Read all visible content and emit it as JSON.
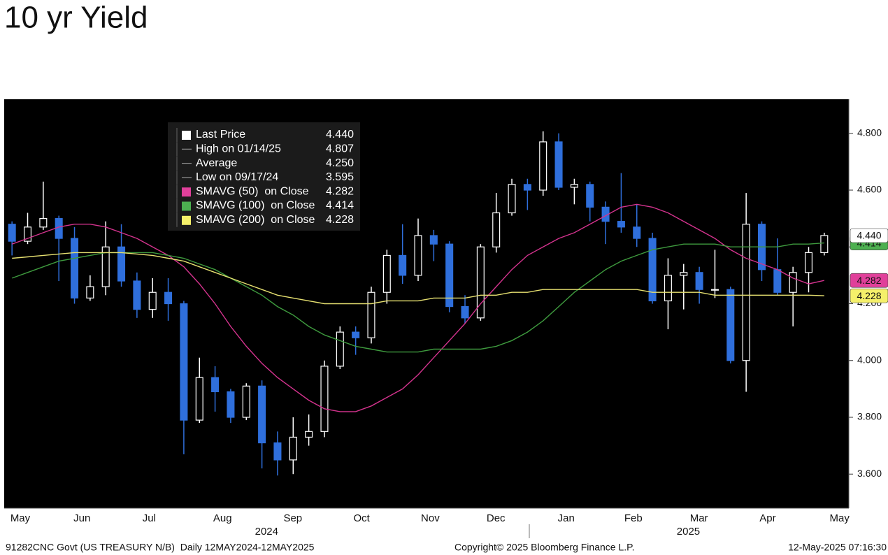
{
  "chart_data": {
    "type": "candlestick",
    "title": "10 yr Yield",
    "ylim": [
      3.48,
      4.92
    ],
    "yticks": [
      {
        "value": 3.6,
        "label": "3.600"
      },
      {
        "value": 3.8,
        "label": "3.800"
      },
      {
        "value": 4.0,
        "label": "4.000"
      },
      {
        "value": 4.2,
        "label": "4.200"
      },
      {
        "value": 4.4,
        "label": "4.400"
      },
      {
        "value": 4.6,
        "label": "4.600"
      },
      {
        "value": 4.8,
        "label": "4.800"
      }
    ],
    "categories": [
      null,
      null,
      null,
      null,
      null,
      null,
      null,
      null,
      null,
      null,
      null,
      null,
      null,
      null,
      null,
      null,
      null,
      null,
      null,
      null,
      null,
      null,
      null,
      null,
      null,
      null,
      null,
      null,
      null,
      null,
      null,
      null,
      null,
      null,
      null,
      null,
      null,
      null,
      null,
      null,
      null,
      null,
      null,
      null,
      null,
      null,
      null,
      null,
      null,
      null,
      null,
      null,
      null
    ],
    "xticks": [
      {
        "value": 0.35,
        "label": "May"
      },
      {
        "value": 4.3,
        "label": "Jun"
      },
      {
        "value": 8.6,
        "label": "Jul"
      },
      {
        "value": 13.3,
        "label": "Aug"
      },
      {
        "value": 17.8,
        "label": "Sep"
      },
      {
        "value": 22.2,
        "label": "Oct"
      },
      {
        "value": 26.6,
        "label": "Nov"
      },
      {
        "value": 30.8,
        "label": "Dec"
      },
      {
        "value": 35.3,
        "label": "Jan"
      },
      {
        "value": 39.6,
        "label": "Feb"
      },
      {
        "value": 43.8,
        "label": "Mar"
      },
      {
        "value": 48.2,
        "label": "Apr"
      },
      {
        "value": 52.8,
        "label": "May"
      }
    ],
    "years": [
      {
        "value": 16.3,
        "label": "2024"
      },
      {
        "value": 43.3,
        "label": "2025"
      }
    ],
    "up_color": "#ffffff",
    "down_color": "#2f6fdc",
    "ohlc": [
      [
        4.48,
        4.49,
        4.37,
        4.42
      ],
      [
        4.42,
        4.52,
        4.41,
        4.47
      ],
      [
        4.47,
        4.63,
        4.46,
        4.5
      ],
      [
        4.5,
        4.51,
        4.28,
        4.43
      ],
      [
        4.43,
        4.47,
        4.2,
        4.22
      ],
      [
        4.22,
        4.3,
        4.21,
        4.26
      ],
      [
        4.26,
        4.49,
        4.23,
        4.4
      ],
      [
        4.4,
        4.48,
        4.26,
        4.28
      ],
      [
        4.28,
        4.31,
        4.15,
        4.18
      ],
      [
        4.18,
        4.29,
        4.15,
        4.24
      ],
      [
        4.24,
        4.29,
        4.14,
        4.2
      ],
      [
        4.2,
        4.21,
        3.67,
        3.79
      ],
      [
        3.79,
        4.01,
        3.78,
        3.94
      ],
      [
        3.94,
        3.98,
        3.82,
        3.89
      ],
      [
        3.89,
        3.9,
        3.78,
        3.8
      ],
      [
        3.8,
        3.92,
        3.79,
        3.91
      ],
      [
        3.91,
        3.93,
        3.62,
        3.71
      ],
      [
        3.71,
        3.75,
        3.595,
        3.65
      ],
      [
        3.65,
        3.8,
        3.6,
        3.73
      ],
      [
        3.73,
        3.81,
        3.7,
        3.75
      ],
      [
        3.75,
        4.0,
        3.73,
        3.98
      ],
      [
        3.98,
        4.12,
        3.97,
        4.1
      ],
      [
        4.1,
        4.12,
        4.02,
        4.08
      ],
      [
        4.08,
        4.26,
        4.06,
        4.24
      ],
      [
        4.24,
        4.39,
        4.2,
        4.37
      ],
      [
        4.37,
        4.48,
        4.27,
        4.3
      ],
      [
        4.3,
        4.5,
        4.28,
        4.44
      ],
      [
        4.44,
        4.46,
        4.35,
        4.41
      ],
      [
        4.41,
        4.42,
        4.17,
        4.19
      ],
      [
        4.19,
        4.23,
        4.13,
        4.15
      ],
      [
        4.15,
        4.41,
        4.14,
        4.4
      ],
      [
        4.4,
        4.59,
        4.38,
        4.52
      ],
      [
        4.52,
        4.64,
        4.51,
        4.62
      ],
      [
        4.62,
        4.64,
        4.53,
        4.6
      ],
      [
        4.6,
        4.807,
        4.58,
        4.77
      ],
      [
        4.77,
        4.8,
        4.6,
        4.61
      ],
      [
        4.61,
        4.64,
        4.55,
        4.62
      ],
      [
        4.62,
        4.63,
        4.49,
        4.54
      ],
      [
        4.54,
        4.56,
        4.41,
        4.49
      ],
      [
        4.49,
        4.66,
        4.45,
        4.47
      ],
      [
        4.47,
        4.55,
        4.4,
        4.43
      ],
      [
        4.43,
        4.45,
        4.2,
        4.21
      ],
      [
        4.21,
        4.36,
        4.11,
        4.3
      ],
      [
        4.3,
        4.34,
        4.18,
        4.31
      ],
      [
        4.31,
        4.33,
        4.2,
        4.25
      ],
      [
        4.25,
        4.39,
        4.22,
        4.25
      ],
      [
        4.25,
        4.26,
        3.99,
        4.0
      ],
      [
        4.0,
        4.59,
        3.89,
        4.48
      ],
      [
        4.48,
        4.49,
        4.28,
        4.32
      ],
      [
        4.32,
        4.43,
        4.23,
        4.24
      ],
      [
        4.24,
        4.33,
        4.12,
        4.31
      ],
      [
        4.31,
        4.4,
        4.24,
        4.38
      ],
      [
        4.38,
        4.45,
        4.37,
        4.44
      ]
    ],
    "stats": [
      {
        "name": "Last Price",
        "value": 4.44,
        "value_label": "4.440",
        "color": "#ffffff"
      },
      {
        "name": "High on 01/14/25",
        "value": 4.807,
        "value_label": "4.807"
      },
      {
        "name": "Average",
        "value": 4.25,
        "value_label": "4.250"
      },
      {
        "name": "Low on 09/17/24",
        "value": 3.595,
        "value_label": "3.595"
      }
    ],
    "series": [
      {
        "name": "SMAVG (50)  on Close",
        "color": "#d4338e",
        "tag_color": "#e0409a",
        "last": 4.282,
        "last_label": "4.282",
        "values": [
          4.41,
          4.43,
          4.45,
          4.47,
          4.48,
          4.48,
          4.47,
          4.45,
          4.43,
          4.4,
          4.37,
          4.33,
          4.27,
          4.2,
          4.12,
          4.05,
          3.99,
          3.94,
          3.9,
          3.86,
          3.83,
          3.82,
          3.82,
          3.84,
          3.87,
          3.9,
          3.95,
          4.01,
          4.07,
          4.13,
          4.2,
          4.26,
          4.32,
          4.37,
          4.4,
          4.43,
          4.45,
          4.48,
          4.51,
          4.54,
          4.55,
          4.54,
          4.52,
          4.49,
          4.46,
          4.43,
          4.39,
          4.36,
          4.34,
          4.32,
          4.29,
          4.27,
          4.282
        ]
      },
      {
        "name": "SMAVG (100)  on Close",
        "color": "#3e9a3e",
        "tag_color": "#4cb050",
        "last": 4.414,
        "last_label": "4.414",
        "values": [
          4.29,
          4.31,
          4.33,
          4.35,
          4.36,
          4.37,
          4.38,
          4.38,
          4.38,
          4.38,
          4.37,
          4.36,
          4.34,
          4.32,
          4.29,
          4.26,
          4.23,
          4.19,
          4.16,
          4.12,
          4.09,
          4.07,
          4.05,
          4.04,
          4.03,
          4.03,
          4.03,
          4.04,
          4.04,
          4.04,
          4.04,
          4.05,
          4.07,
          4.1,
          4.14,
          4.19,
          4.24,
          4.28,
          4.32,
          4.35,
          4.37,
          4.39,
          4.4,
          4.41,
          4.41,
          4.41,
          4.4,
          4.4,
          4.4,
          4.4,
          4.41,
          4.41,
          4.414
        ]
      },
      {
        "name": "SMAVG (200)  on Close",
        "color": "#e6e070",
        "tag_color": "#f5f06a",
        "last": 4.228,
        "last_label": "4.228",
        "values": [
          4.36,
          4.365,
          4.37,
          4.375,
          4.38,
          4.38,
          4.38,
          4.38,
          4.375,
          4.37,
          4.36,
          4.35,
          4.33,
          4.31,
          4.29,
          4.27,
          4.25,
          4.23,
          4.22,
          4.21,
          4.2,
          4.2,
          4.2,
          4.2,
          4.21,
          4.21,
          4.21,
          4.22,
          4.22,
          4.22,
          4.23,
          4.23,
          4.24,
          4.24,
          4.25,
          4.25,
          4.25,
          4.25,
          4.25,
          4.25,
          4.25,
          4.24,
          4.24,
          4.24,
          4.24,
          4.23,
          4.23,
          4.23,
          4.23,
          4.23,
          4.23,
          4.23,
          4.228
        ]
      }
    ],
    "footer_left": "91282CNC Govt (US TREASURY N/B)  Daily 12MAY2024-12MAY2025",
    "footer_center": "Copyright© 2025 Bloomberg Finance L.P.",
    "footer_right": "12-May-2025 07:16:30"
  }
}
